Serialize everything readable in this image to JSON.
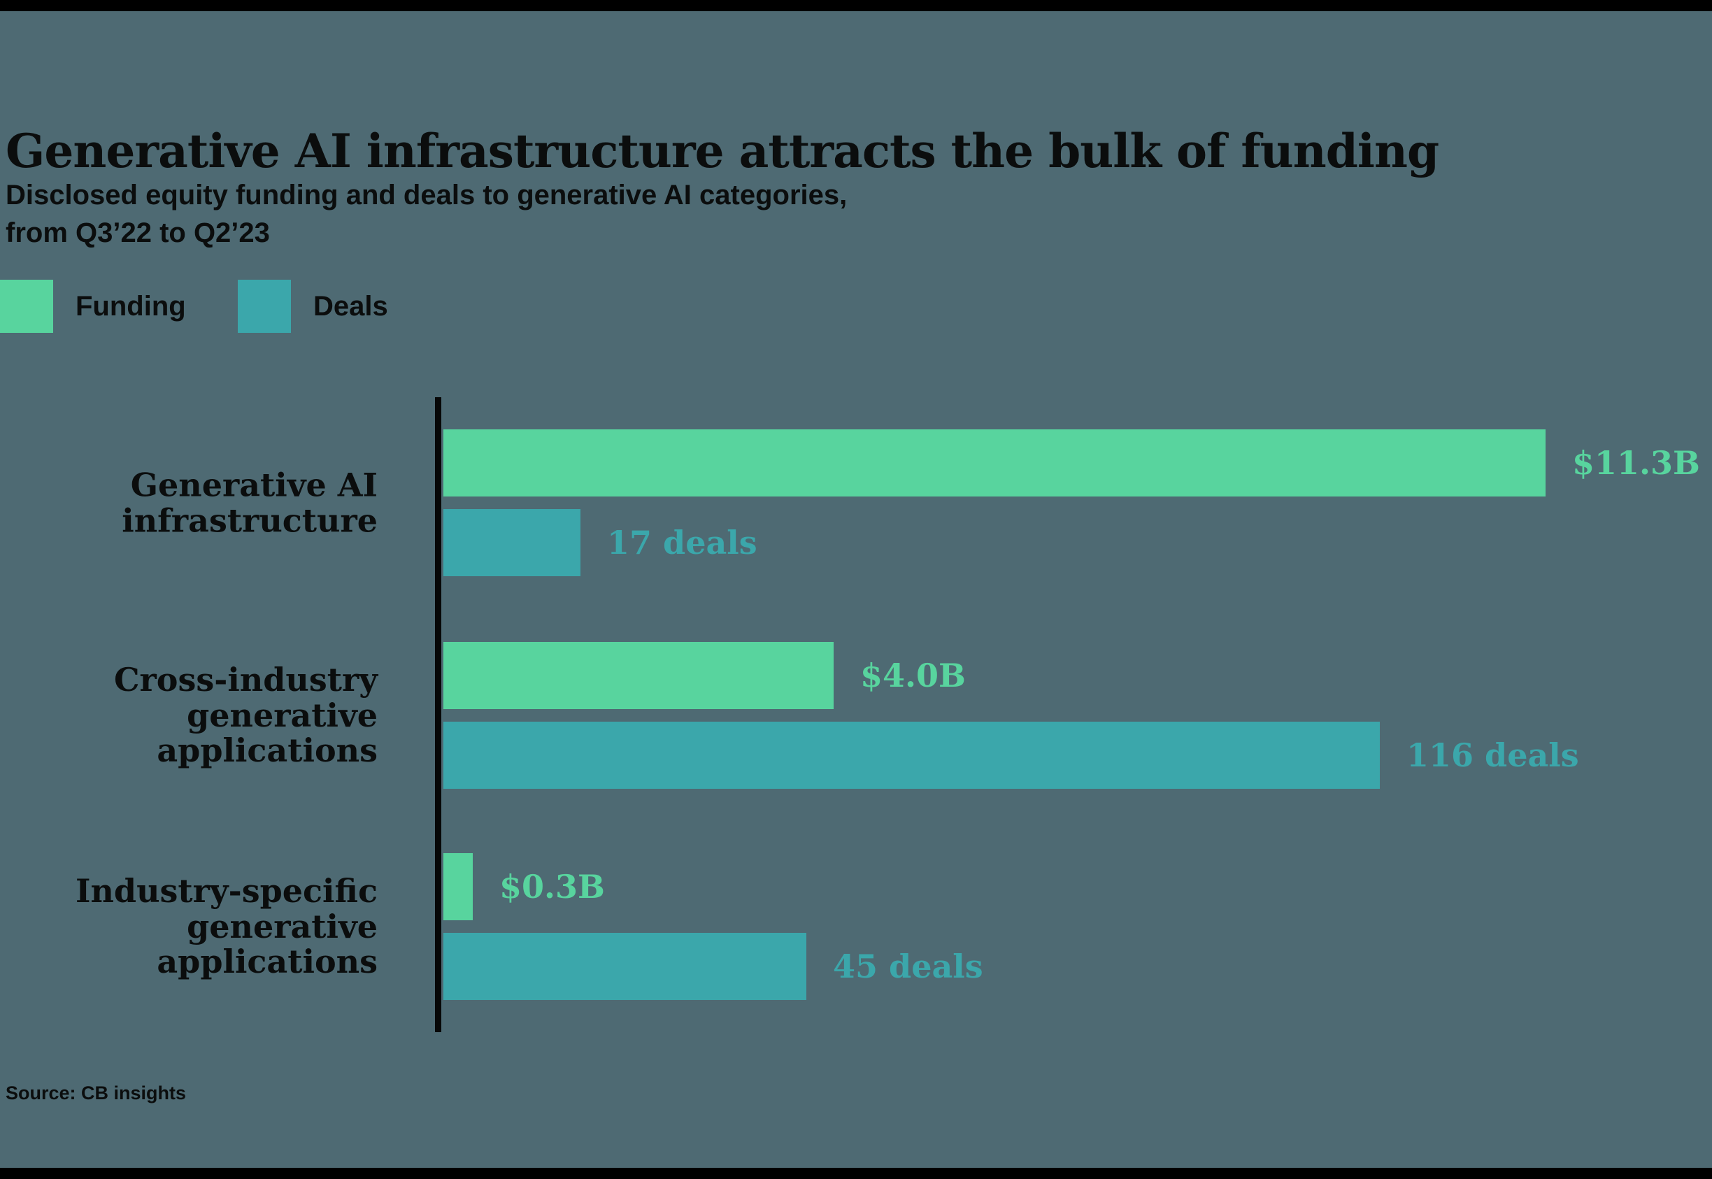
{
  "page": {
    "title": "Generative AI infrastructure attracts the bulk of funding",
    "subtitle": "Disclosed equity funding and deals to generative AI categories,\nfrom Q3’22 to Q2’23",
    "source": "Source: CB insights"
  },
  "colors": {
    "background": "#4e6a73",
    "funding": "#58d49e",
    "deals": "#3ba7ab",
    "text": "#0b0d0d"
  },
  "legend": {
    "funding_label": "Funding",
    "deals_label": "Deals"
  },
  "chart_data": {
    "type": "bar",
    "orientation": "horizontal",
    "title": "Generative AI infrastructure attracts the bulk of funding",
    "subtitle": "Disclosed equity funding and deals to generative AI categories, from Q3’22 to Q2’23",
    "source": "Source: CB insights",
    "grid": false,
    "legend_position": "top-left",
    "categories": [
      "Generative AI infrastructure",
      "Cross-industry generative applications",
      "Industry-specific generative applications"
    ],
    "category_label_lines": [
      [
        "Generative AI",
        "infrastructure"
      ],
      [
        "Cross-industry",
        "generative",
        "applications"
      ],
      [
        "Industry-specific",
        "generative",
        "applications"
      ]
    ],
    "series": [
      {
        "name": "Funding",
        "unit": "USD billions",
        "color": "#58d49e",
        "values": [
          11.3,
          4.0,
          0.3
        ],
        "labels": [
          "$11.3B",
          "$4.0B",
          "$0.3B"
        ],
        "axis_max": 11.3
      },
      {
        "name": "Deals",
        "unit": "deals",
        "color": "#3ba7ab",
        "values": [
          17,
          116,
          45
        ],
        "labels": [
          "17 deals",
          "116 deals",
          "45 deals"
        ],
        "axis_max": 116
      }
    ]
  }
}
